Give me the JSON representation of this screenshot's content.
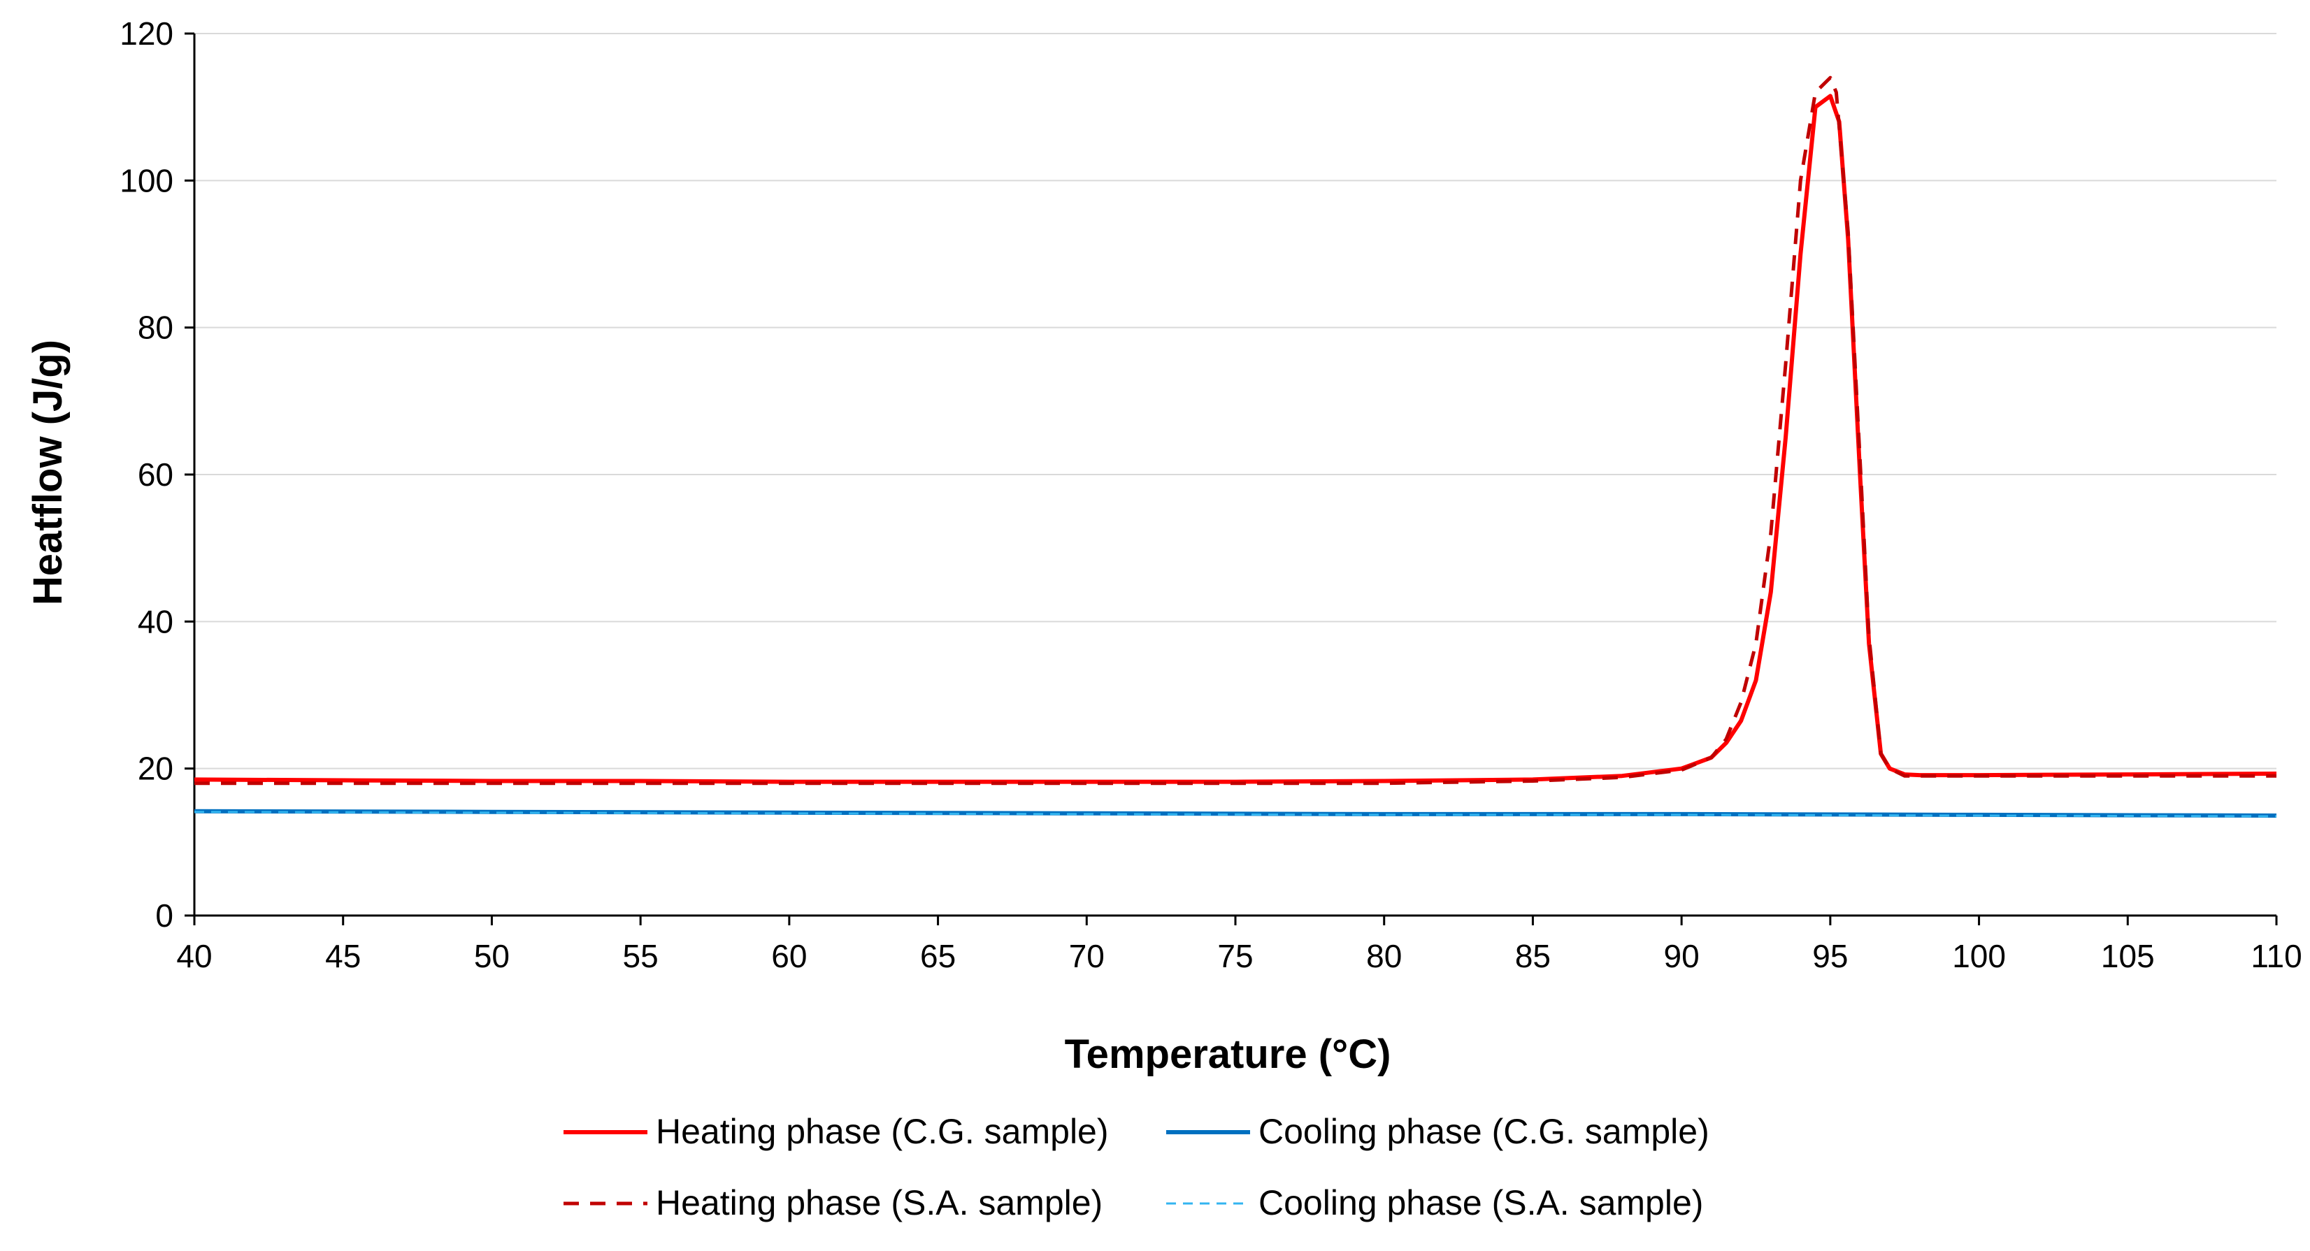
{
  "chart_data": {
    "type": "line",
    "title": "",
    "xlabel": "Temperature (°C)",
    "ylabel": "Heatflow (J/g)",
    "xlim": [
      40,
      110
    ],
    "ylim": [
      0,
      120
    ],
    "xticks": [
      40,
      45,
      50,
      55,
      60,
      65,
      70,
      75,
      80,
      85,
      90,
      95,
      100,
      105,
      110
    ],
    "yticks": [
      0,
      20,
      40,
      60,
      80,
      100,
      120
    ],
    "grid": "horizontal",
    "legend": "bottom",
    "series": [
      {
        "name": "Heating phase (C.G. sample)",
        "color": "#ff0000",
        "style": "solid",
        "x": [
          40,
          45,
          50,
          55,
          60,
          65,
          70,
          75,
          80,
          85,
          88,
          90,
          91,
          91.5,
          92,
          92.5,
          93,
          93.5,
          94,
          94.5,
          95,
          95.3,
          95.6,
          96,
          96.3,
          96.7,
          97,
          97.5,
          98,
          100,
          105,
          110
        ],
        "values": [
          18.5,
          18.4,
          18.3,
          18.3,
          18.2,
          18.2,
          18.2,
          18.2,
          18.3,
          18.5,
          19,
          20,
          21.5,
          23.5,
          26.5,
          32,
          44,
          65,
          90,
          110,
          111.5,
          108,
          92,
          60,
          37,
          22,
          20,
          19.2,
          19.1,
          19.1,
          19.2,
          19.3
        ]
      },
      {
        "name": "Heating phase (S.A. sample)",
        "color": "#c00000",
        "style": "dashed",
        "x": [
          40,
          45,
          50,
          55,
          60,
          65,
          70,
          75,
          80,
          85,
          88,
          90,
          91,
          91.5,
          92,
          92.5,
          93,
          93.5,
          94,
          94.5,
          95,
          95.2,
          95.6,
          96,
          96.3,
          96.7,
          97,
          97.5,
          98,
          100,
          105,
          110
        ],
        "values": [
          18,
          18,
          18,
          18,
          18,
          18,
          18,
          18,
          18,
          18.3,
          18.8,
          19.8,
          21.5,
          24,
          29,
          37,
          52,
          75,
          100,
          112,
          114,
          112,
          93,
          62,
          38,
          22,
          20,
          19,
          19,
          19,
          19,
          19
        ]
      },
      {
        "name": "Cooling phase (C.G. sample)",
        "color": "#0070c0",
        "style": "solid",
        "x": [
          40,
          50,
          60,
          70,
          80,
          90,
          100,
          110
        ],
        "values": [
          14.2,
          14.1,
          14,
          13.9,
          13.8,
          13.8,
          13.7,
          13.6
        ]
      },
      {
        "name": "Cooling phase (S.A. sample)",
        "color": "#33b5f0",
        "style": "dashed",
        "x": [
          40,
          50,
          60,
          70,
          80,
          90,
          100,
          110
        ],
        "values": [
          14.1,
          14,
          13.9,
          13.8,
          13.7,
          13.7,
          13.6,
          13.5
        ]
      }
    ]
  }
}
